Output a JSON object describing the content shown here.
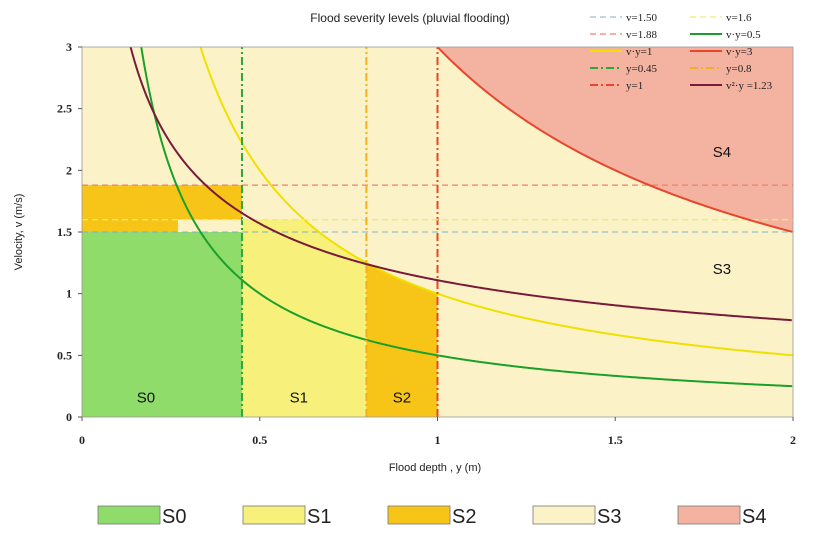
{
  "chart_data": {
    "type": "area",
    "title": "Flood severity levels (pluvial flooding)",
    "xlabel": "Flood depth , y (m)",
    "ylabel": "Velocity, v (m/s)",
    "xlim": [
      0,
      2
    ],
    "ylim": [
      0,
      3
    ],
    "x_ticks": [
      {
        "value": 0,
        "label": "0"
      },
      {
        "value": 0.5,
        "label": "0.5"
      },
      {
        "value": 1,
        "label": "1"
      },
      {
        "value": 1.5,
        "label": "1.5"
      },
      {
        "value": 2,
        "label": "2"
      }
    ],
    "y_ticks": [
      {
        "value": 0,
        "label": "0"
      },
      {
        "value": 0.5,
        "label": "0.5"
      },
      {
        "value": 1,
        "label": "1"
      },
      {
        "value": 1.5,
        "label": "1.5"
      },
      {
        "value": 2,
        "label": "2"
      },
      {
        "value": 2.5,
        "label": "2.5"
      },
      {
        "value": 3,
        "label": "3"
      }
    ],
    "regions": [
      {
        "name": "S0",
        "color": "#8fdc6a",
        "label_at": [
          0.18,
          0.16
        ]
      },
      {
        "name": "S1",
        "color": "#f7f07a",
        "label_at": [
          0.61,
          0.16
        ]
      },
      {
        "name": "S2",
        "color": "#f7c518",
        "label_at": [
          0.9,
          0.16
        ]
      },
      {
        "name": "S3",
        "color": "#fbf3c7",
        "label_at": [
          1.8,
          1.2
        ]
      },
      {
        "name": "S4",
        "color": "#f4b3a0",
        "label_at": [
          1.8,
          2.15
        ]
      }
    ],
    "region_colors": {
      "S3_base": "#fbf3c7",
      "S2_band": "#f7c518"
    },
    "lines": [
      {
        "id": "v150",
        "label": "v=1.50",
        "kind": "hline",
        "value": 1.5,
        "color": "#7fb0c8",
        "dash": "6,4",
        "width": 1
      },
      {
        "id": "v188",
        "label": "v=1.88",
        "kind": "hline",
        "value": 1.88,
        "color": "#f07f6a",
        "dash": "6,4",
        "width": 1.3
      },
      {
        "id": "vy1",
        "label": "v·y=1",
        "kind": "hyperbola",
        "k": 1,
        "power": 1,
        "color": "#f0e000",
        "dash": "",
        "width": 2
      },
      {
        "id": "y045",
        "label": "y=0.45",
        "kind": "vline",
        "value": 0.45,
        "color": "#2aa83a",
        "dash": "8,3,2,3",
        "width": 2
      },
      {
        "id": "y1",
        "label": "y=1",
        "kind": "vline",
        "value": 1,
        "color": "#e8452c",
        "dash": "8,3,2,3",
        "width": 2
      },
      {
        "id": "v16",
        "label": "v=1.6",
        "kind": "hline",
        "value": 1.6,
        "color": "#f0ea70",
        "dash": "6,4",
        "width": 1.3
      },
      {
        "id": "vy05",
        "label": "v·y=0.5",
        "kind": "hyperbola",
        "k": 0.5,
        "power": 1,
        "color": "#1aa02a",
        "dash": "",
        "width": 2
      },
      {
        "id": "vy3",
        "label": "v·y=3",
        "kind": "hyperbola",
        "k": 3,
        "power": 1,
        "color": "#e8452c",
        "dash": "",
        "width": 2
      },
      {
        "id": "y08",
        "label": "y=0.8",
        "kind": "vline",
        "value": 0.8,
        "color": "#f0b020",
        "dash": "8,3,2,3",
        "width": 2
      },
      {
        "id": "v2y123",
        "label": "v²·y =1.23",
        "kind": "hyperbola",
        "k": 1.23,
        "power": 2,
        "color": "#7a1a3a",
        "dash": "",
        "width": 2
      }
    ],
    "legend_position": "top-right",
    "bottom_legend_position": "bottom"
  }
}
